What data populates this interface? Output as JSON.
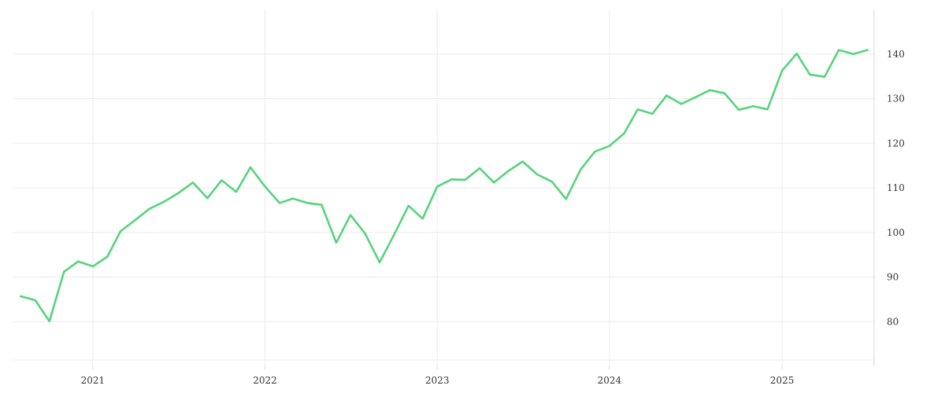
{
  "chart_data": {
    "type": "line",
    "title": "",
    "xlabel": "",
    "ylabel": "",
    "x_ticks": [
      "2021",
      "2022",
      "2023",
      "2024",
      "2025"
    ],
    "y_ticks": [
      80,
      90,
      100,
      110,
      120,
      130,
      140
    ],
    "ylim": [
      70,
      150
    ],
    "xlim": [
      "2020-07-15",
      "2025-07-15"
    ],
    "grid": true,
    "legend": "none",
    "colors": {
      "line": "#55d47a",
      "grid": "#ececec"
    },
    "series": [
      {
        "x": [
          "2020-08-01",
          "2020-09-01",
          "2020-10-01",
          "2020-11-01",
          "2020-12-01",
          "2021-01-01",
          "2021-02-01",
          "2021-03-01",
          "2021-04-01",
          "2021-05-01",
          "2021-06-01",
          "2021-07-01",
          "2021-08-01",
          "2021-09-01",
          "2021-10-01",
          "2021-11-01",
          "2021-12-01",
          "2022-01-01",
          "2022-02-01",
          "2022-03-01",
          "2022-04-01",
          "2022-05-01",
          "2022-06-01",
          "2022-07-01",
          "2022-08-01",
          "2022-09-01",
          "2022-10-01",
          "2022-11-01",
          "2022-12-01",
          "2023-01-01",
          "2023-02-01",
          "2023-03-01",
          "2023-04-01",
          "2023-05-01",
          "2023-06-01",
          "2023-07-01",
          "2023-08-01",
          "2023-09-01",
          "2023-10-01",
          "2023-11-01",
          "2023-12-01",
          "2024-01-01",
          "2024-02-01",
          "2024-03-01",
          "2024-04-01",
          "2024-05-01",
          "2024-06-01",
          "2024-07-01",
          "2024-08-01",
          "2024-09-01",
          "2024-10-01",
          "2024-11-01",
          "2024-12-01",
          "2025-01-01",
          "2025-02-01",
          "2025-03-01",
          "2025-04-01",
          "2025-05-01",
          "2025-06-01",
          "2025-07-01"
        ],
        "values": [
          85.7,
          84.8,
          80.1,
          91.2,
          93.5,
          92.4,
          94.6,
          100.3,
          102.8,
          105.3,
          106.9,
          108.8,
          111.2,
          107.7,
          111.7,
          109.1,
          114.6,
          110.3,
          106.6,
          107.6,
          106.6,
          106.2,
          97.7,
          103.9,
          99.8,
          93.3,
          99.4,
          106.0,
          103.1,
          110.3,
          111.9,
          111.8,
          114.4,
          111.2,
          113.8,
          115.9,
          113.0,
          111.4,
          107.5,
          114.1,
          118.1,
          119.4,
          122.2,
          127.6,
          126.6,
          130.7,
          128.8,
          130.3,
          131.9,
          131.2,
          127.5,
          128.3,
          127.6,
          136.3,
          140.1,
          135.4,
          134.9,
          140.9,
          140.0,
          140.9
        ]
      }
    ]
  }
}
